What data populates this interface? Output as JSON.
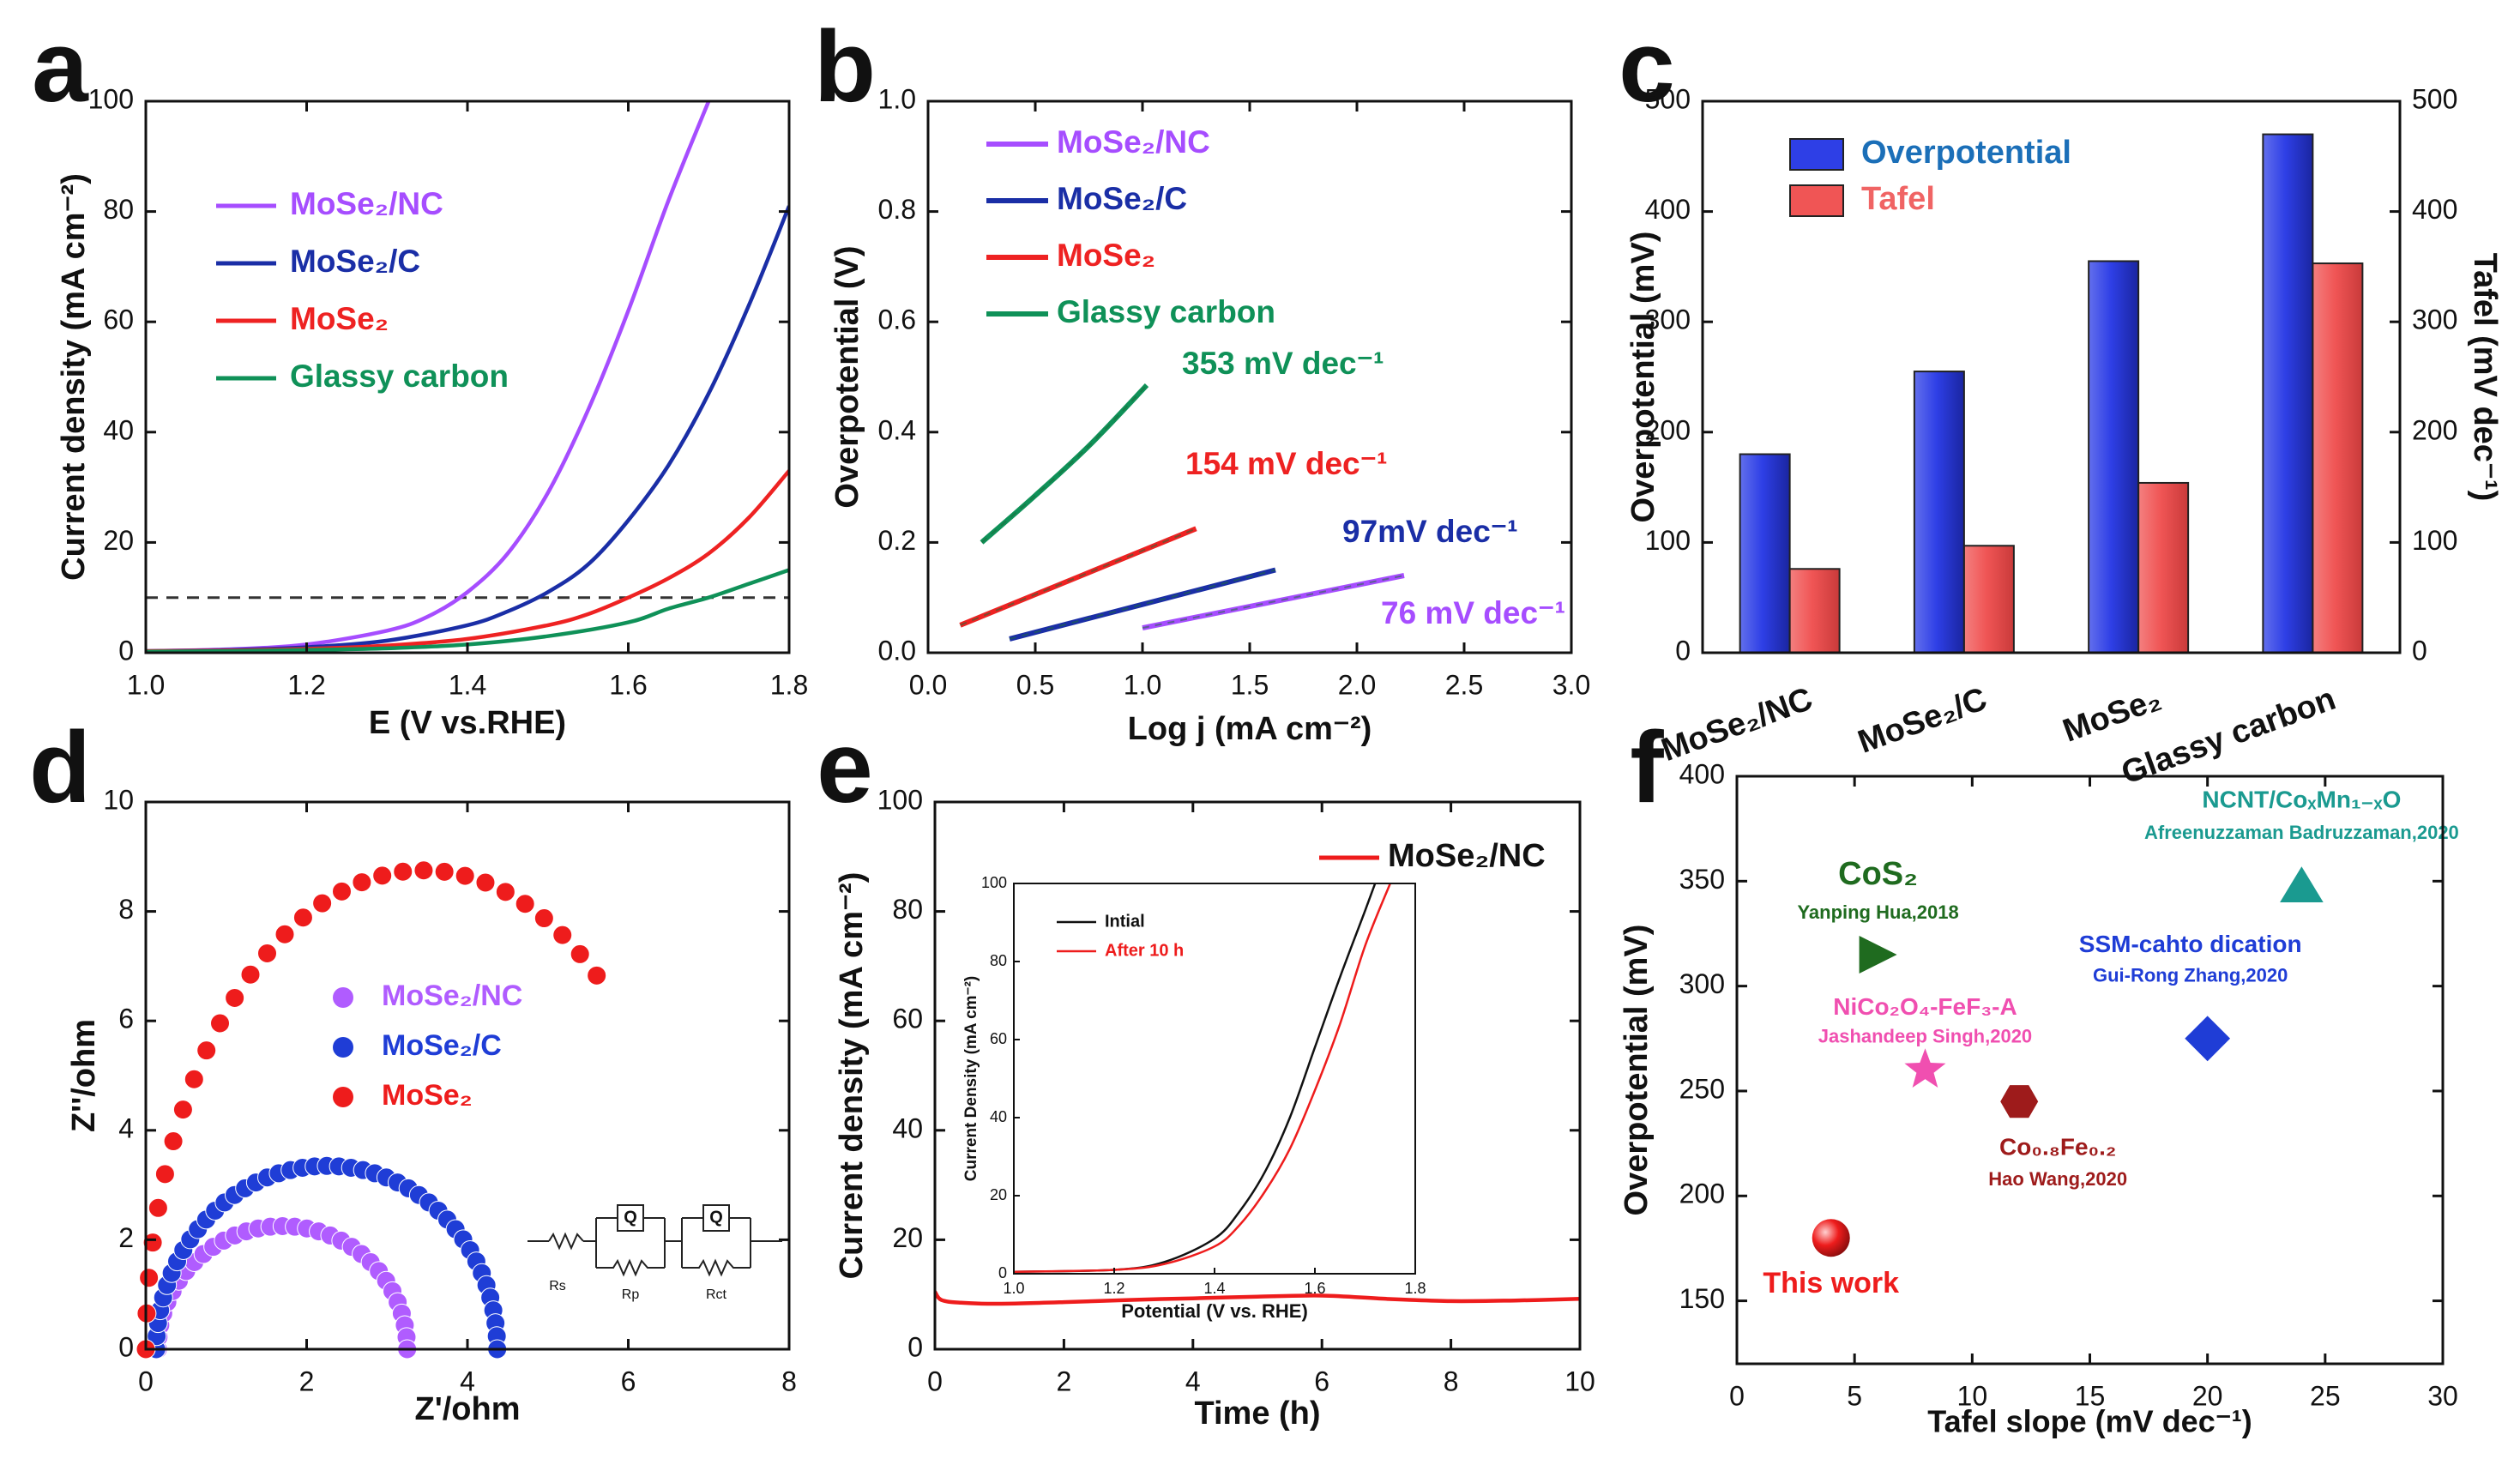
{
  "figure": {
    "panels": [
      {
        "letter": "a",
        "type": "line",
        "xlabel": "E (V vs.RHE)",
        "ylabel": "Current density (mA cm⁻²)",
        "xlim": [
          1.0,
          1.8
        ],
        "ylim": [
          0,
          100
        ],
        "xticks": [
          "1.0",
          "1.2",
          "1.4",
          "1.6",
          "1.8"
        ],
        "yticks": [
          "0",
          "20",
          "40",
          "60",
          "80",
          "100"
        ],
        "reference_line_y": 10,
        "legend": [
          "MoSe₂/NC",
          "MoSe₂/C",
          "MoSe₂",
          "Glassy carbon"
        ],
        "series": [
          {
            "name": "MoSe₂/NC",
            "color": "#a64dff",
            "x": [
              1.0,
              1.1,
              1.2,
              1.3,
              1.35,
              1.4,
              1.45,
              1.5,
              1.55,
              1.6,
              1.65,
              1.7
            ],
            "y": [
              0.3,
              0.6,
              1.5,
              4,
              6.5,
              11,
              18,
              29,
              44,
              62,
              82,
              100
            ]
          },
          {
            "name": "MoSe₂/C",
            "color": "#1a2ea6",
            "x": [
              1.0,
              1.1,
              1.2,
              1.3,
              1.4,
              1.45,
              1.5,
              1.55,
              1.6,
              1.65,
              1.7,
              1.75,
              1.8
            ],
            "y": [
              0.3,
              0.5,
              1,
              2.2,
              5,
              7.5,
              11,
              16,
              24,
              34,
              47,
              63,
              81
            ]
          },
          {
            "name": "MoSe₂",
            "color": "#ee2222",
            "x": [
              1.0,
              1.1,
              1.2,
              1.3,
              1.4,
              1.5,
              1.55,
              1.6,
              1.65,
              1.7,
              1.75,
              1.8
            ],
            "y": [
              0.3,
              0.4,
              0.7,
              1.3,
              2.5,
              5,
              7,
              10,
              13.5,
              18,
              24.5,
              33
            ]
          },
          {
            "name": "Glassy carbon",
            "color": "#0f9158",
            "x": [
              1.0,
              1.1,
              1.2,
              1.3,
              1.4,
              1.5,
              1.6,
              1.65,
              1.7,
              1.75,
              1.8
            ],
            "y": [
              0.2,
              0.3,
              0.5,
              0.8,
              1.5,
              3,
              5.5,
              8,
              10,
              12.5,
              15
            ]
          }
        ]
      },
      {
        "letter": "b",
        "type": "line",
        "xlabel": "Log j (mA cm⁻²)",
        "ylabel": "Overpotential (V)",
        "xlim": [
          0.0,
          3.0
        ],
        "ylim": [
          0.0,
          1.0
        ],
        "xticks": [
          "0.0",
          "0.5",
          "1.0",
          "1.5",
          "2.0",
          "2.5",
          "3.0"
        ],
        "yticks": [
          "0.0",
          "0.2",
          "0.4",
          "0.6",
          "0.8",
          "1.0"
        ],
        "legend": [
          "MoSe₂/NC",
          "MoSe₂/C",
          "MoSe₂",
          "Glassy carbon"
        ],
        "series": [
          {
            "name": "MoSe₂/NC",
            "color": "#a64dff",
            "x": [
              1.0,
              2.22
            ],
            "y": [
              0.045,
              0.14
            ],
            "annotation": "76 mV dec⁻¹"
          },
          {
            "name": "MoSe₂/C",
            "color": "#1a2ea6",
            "x": [
              0.38,
              1.62
            ],
            "y": [
              0.025,
              0.15
            ],
            "annotation": "97mV dec⁻¹"
          },
          {
            "name": "MoSe₂",
            "color": "#ee2222",
            "x": [
              0.15,
              1.25
            ],
            "y": [
              0.05,
              0.225
            ],
            "annotation": "154 mV dec⁻¹"
          },
          {
            "name": "Glassy carbon",
            "color": "#0f9158",
            "x": [
              0.25,
              0.5,
              0.75,
              1.02
            ],
            "y": [
              0.2,
              0.285,
              0.375,
              0.485
            ],
            "annotation": "353 mV dec⁻¹"
          }
        ]
      },
      {
        "letter": "c",
        "type": "bar",
        "ylabel": "Overpotential (mV)",
        "y2label": "Tafel (mV dec⁻¹)",
        "ylim": [
          0,
          500
        ],
        "yticks": [
          "0",
          "100",
          "200",
          "300",
          "400",
          "500"
        ],
        "categories": [
          "MoSe₂/NC",
          "MoSe₂/C",
          "MoSe₂",
          "Glassy carbon"
        ],
        "legend": [
          "Overpotential",
          "Tafel"
        ],
        "series": [
          {
            "name": "Overpotential",
            "color": "#2e3fe6",
            "values": [
              180,
              255,
              355,
              470
            ]
          },
          {
            "name": "Tafel",
            "color": "#f05555",
            "values": [
              76,
              97,
              154,
              353
            ]
          }
        ]
      },
      {
        "letter": "d",
        "type": "scatter",
        "xlabel": "Z'/ohm",
        "ylabel": "Z''/ohm",
        "xlim": [
          0,
          8
        ],
        "ylim": [
          0,
          10
        ],
        "xticks": [
          "0",
          "2",
          "4",
          "6",
          "8"
        ],
        "yticks": [
          "0",
          "2",
          "4",
          "6",
          "8",
          "10"
        ],
        "legend": [
          "MoSe₂/NC",
          "MoSe₂/C",
          "MoSe₂"
        ],
        "circuit_labels": [
          "Rs",
          "Q",
          "Rp",
          "Q",
          "Rct"
        ],
        "series": [
          {
            "name": "MoSe₂/NC",
            "color": "#b05cff",
            "center": 1.7,
            "radius": 1.55,
            "height": 2.25,
            "points": 32,
            "stop": 1.0
          },
          {
            "name": "MoSe₂/C",
            "color": "#1f3dd6",
            "center": 2.25,
            "radius": 2.12,
            "height": 3.35,
            "points": 44,
            "stop": 1.0
          },
          {
            "name": "MoSe₂",
            "color": "#ee1c1c",
            "center": 3.45,
            "radius": 3.45,
            "height": 8.75,
            "points": 30,
            "stop": 0.715
          }
        ]
      },
      {
        "letter": "e",
        "type": "line",
        "xlabel": "Time (h)",
        "ylabel": "Current density (mA cm⁻²)",
        "xlim": [
          0,
          10
        ],
        "ylim": [
          0,
          100
        ],
        "xticks": [
          "0",
          "2",
          "4",
          "6",
          "8",
          "10"
        ],
        "yticks": [
          "0",
          "20",
          "40",
          "60",
          "80",
          "100"
        ],
        "legend": [
          "MoSe₂/NC"
        ],
        "series": [
          {
            "name": "MoSe₂/NC",
            "color": "#ee1c1c",
            "x": [
              0,
              0.1,
              0.4,
              1,
              2,
              3,
              4,
              5,
              6,
              7,
              8,
              9,
              10
            ],
            "y": [
              10.5,
              9,
              8.5,
              8.3,
              8.6,
              9.0,
              9.3,
              9.6,
              9.8,
              9.2,
              8.8,
              8.9,
              9.2
            ]
          }
        ],
        "inset": {
          "xlabel": "Potential (V vs. RHE)",
          "ylabel": "Current Density (mA cm⁻²)",
          "xlim": [
            1.0,
            1.8
          ],
          "ylim": [
            0,
            100
          ],
          "xticks": [
            "1.0",
            "1.2",
            "1.4",
            "1.6",
            "1.8"
          ],
          "yticks": [
            "0",
            "20",
            "40",
            "60",
            "80",
            "100"
          ],
          "legend": [
            "Intial",
            "After 10 h"
          ],
          "series": [
            {
              "name": "Intial",
              "color": "#111111",
              "x": [
                1.0,
                1.2,
                1.3,
                1.4,
                1.45,
                1.5,
                1.55,
                1.6,
                1.65,
                1.7,
                1.72
              ],
              "y": [
                0.5,
                1,
                3,
                9,
                16,
                26,
                40,
                58,
                76,
                93,
                100
              ]
            },
            {
              "name": "After 10 h",
              "color": "#ee1c1c",
              "x": [
                1.0,
                1.2,
                1.3,
                1.4,
                1.45,
                1.5,
                1.55,
                1.6,
                1.65,
                1.7,
                1.75
              ],
              "y": [
                0.5,
                1,
                2.5,
                7,
                12.5,
                21,
                32,
                47,
                64,
                84,
                100
              ]
            }
          ]
        }
      },
      {
        "letter": "f",
        "type": "scatter",
        "xlabel": "Tafel slope (mV dec⁻¹)",
        "ylabel": "Overpotential (mV)",
        "xlim": [
          0,
          30
        ],
        "ylim": [
          120,
          400
        ],
        "xticks": [
          "0",
          "5",
          "10",
          "15",
          "20",
          "25",
          "30"
        ],
        "yticks": [
          "150",
          "200",
          "250",
          "300",
          "350",
          "400"
        ],
        "points": [
          {
            "x": 4,
            "y": 180,
            "shape": "sphere",
            "color": "#ee1c1c",
            "label": "This work",
            "sublabel": ""
          },
          {
            "x": 6,
            "y": 315,
            "shape": "triangle-right",
            "color": "#1f6b1f",
            "label": "CoS₂",
            "sublabel": "Yanping Hua,2018"
          },
          {
            "x": 8,
            "y": 260,
            "shape": "star",
            "color": "#f04fb0",
            "label": "NiCo₂O₄-FeF₃-A",
            "sublabel": "Jashandeep Singh,2020"
          },
          {
            "x": 12,
            "y": 245,
            "shape": "hexagon",
            "color": "#9e1b1b",
            "label": "Co₀.₈Fe₀.₂",
            "sublabel": "Hao Wang,2020"
          },
          {
            "x": 20,
            "y": 275,
            "shape": "diamond",
            "color": "#1f3dd6",
            "label": "SSM-cahto dication",
            "sublabel": "Gui-Rong Zhang,2020"
          },
          {
            "x": 24,
            "y": 348,
            "shape": "triangle-up",
            "color": "#1a9a90",
            "label": "NCNT/CoₓMn₁₋ₓO",
            "sublabel": "Afreenuzzaman Badruzzaman,2020"
          }
        ]
      }
    ]
  }
}
